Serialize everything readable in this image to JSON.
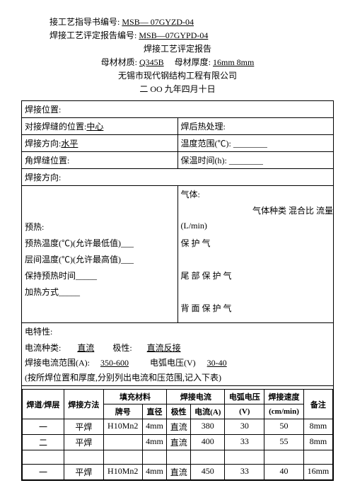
{
  "header": {
    "line1_label": "接工艺指导书编号:",
    "line1_value": "MSB— 07GYZD-04",
    "line2_label": "焊接工艺评定报告编号:",
    "line2_value": "MSB—07GYPD-04",
    "title": "焊接工艺评定报告",
    "material_label": "母材材质:",
    "material_value": "Q345B",
    "thickness_label": "母材厚度:",
    "thickness_value": "16mm   8mm",
    "company": "无锡市现代钢结构工程有限公司",
    "date": "二 OO 九年四月十日"
  },
  "section1": {
    "row1": "焊接位置:",
    "row2_left_label": "对接焊缝的位置:",
    "row2_left_value": "中心",
    "row2_right": "焊后热处理:",
    "row3_left_label": "焊接方向:",
    "row3_left_value": "水平",
    "row3_right": "温度范围(℃): ________",
    "row4_left": "角焊缝位置:",
    "row4_right": "保温时间(h): ________",
    "row5": "焊接方向:"
  },
  "gas": {
    "title": "气体:",
    "subhead": "气体种类  混合比   流量",
    "preheat": "预热:",
    "lmin": "(L/min)",
    "pre_temp": "预热温度(℃)(允许最低值)___",
    "bh": "保                           护                        气",
    "layer_temp": "层间温度(℃)(允许最高值)___",
    "hold_time": "保持预热时间_____",
    "wb": "尾        部        保        护        气",
    "heat_method": "加热方式_____",
    "bm": "背        面        保        护        气"
  },
  "elec": {
    "title": "电特性:",
    "current_label": "电流种类:",
    "current_value": "直流",
    "polarity_label": "极性:",
    "polarity_value": "直流反接",
    "range_label": "焊接电流范围(A):",
    "range_value": "350-600",
    "voltage_label": "电弧电压(V)",
    "voltage_value": "30-40",
    "note": "(按所焊位置和厚度,分别列出电流和压范围,记入下表)"
  },
  "table": {
    "h1": "焊道/焊层",
    "h2": "焊接方法",
    "h3": "填充材料",
    "h3a": "牌号",
    "h3b": "直径",
    "h4": "焊接电流",
    "h4a": "极性",
    "h4b": "电流(A)",
    "h5": "电弧电压",
    "h5a": "(V)",
    "h6": "焊接速度",
    "h6a": "(cm/min)",
    "h7": "备注",
    "rows": [
      {
        "c1": "一",
        "c2": "平焊",
        "c3": "H10Mn2",
        "c4": "4mm",
        "c5": "直流",
        "c6": "380",
        "c7": "30",
        "c8": "50",
        "c9": "8mm"
      },
      {
        "c1": "二",
        "c2": "平焊",
        "c3": "",
        "c4": "4mm",
        "c5": "直流",
        "c6": "400",
        "c7": "33",
        "c8": "55",
        "c9": "8mm"
      },
      {
        "c1": "",
        "c2": "",
        "c3": "",
        "c4": "",
        "c5": "",
        "c6": "",
        "c7": "",
        "c8": "",
        "c9": ""
      },
      {
        "c1": "一",
        "c2": "平焊",
        "c3": "H10Mn2",
        "c4": "4mm",
        "c5": "直流",
        "c6": "450",
        "c7": "33",
        "c8": "40",
        "c9": "16mm"
      }
    ]
  }
}
